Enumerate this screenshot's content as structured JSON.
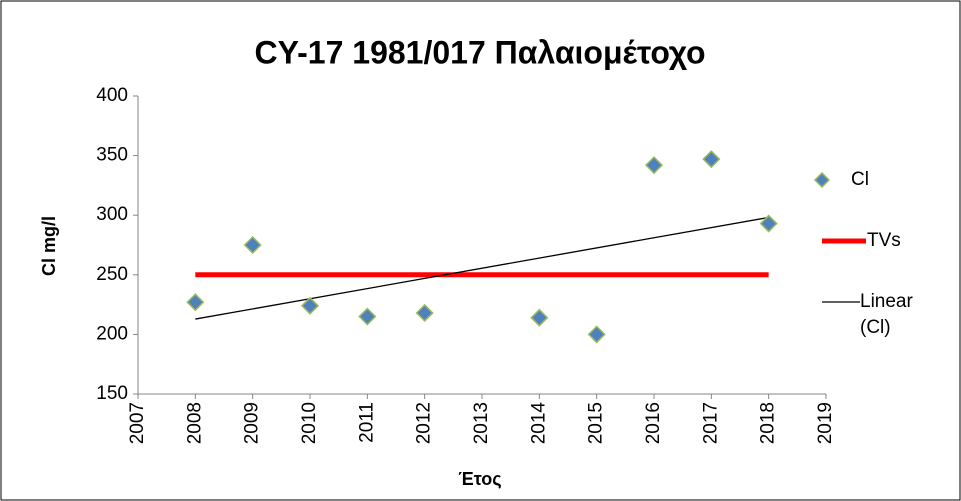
{
  "chart_data": {
    "type": "scatter",
    "title": "CY-17 1981/017 Παλαιομέτοχο",
    "x_label": "Έτος",
    "y_label": "Cl mg/l",
    "xlim": [
      2007,
      2019
    ],
    "xticks": [
      2007,
      2008,
      2009,
      2010,
      2011,
      2012,
      2013,
      2014,
      2015,
      2016,
      2017,
      2018,
      2019
    ],
    "ylim": [
      150,
      400
    ],
    "yticks": [
      150,
      200,
      250,
      300,
      350,
      400
    ],
    "series": [
      {
        "name": "Cl",
        "color": "#4f81bd",
        "x": [
          2008,
          2009,
          2010,
          2011,
          2012,
          2014,
          2015,
          2016,
          2017,
          2018
        ],
        "values": [
          227,
          275,
          224,
          215,
          218,
          214,
          200,
          342,
          347,
          293
        ]
      },
      {
        "name": "TVs",
        "color": "#ff0000",
        "x": [
          2008,
          2018
        ],
        "values": [
          250,
          250
        ]
      }
    ],
    "trendline": {
      "name": "Linear (Cl)",
      "color": "#000000"
    }
  }
}
